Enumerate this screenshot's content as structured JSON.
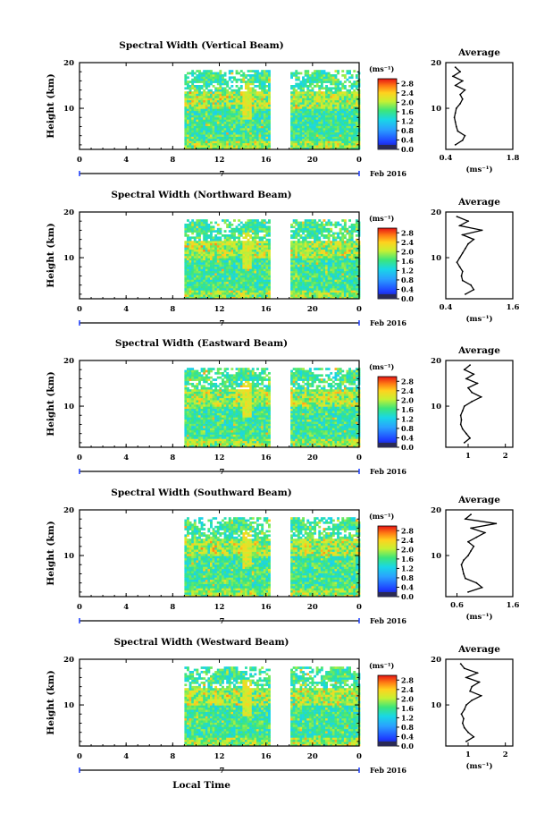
{
  "chart_data": [
    {
      "type": "heatmap",
      "title": "Spectral Width (Vertical Beam)",
      "ylabel": "Height (km)",
      "xlabel": "",
      "date_label": "7",
      "month_label": "Feb 2016",
      "x_ticks": [
        "0",
        "4",
        "8",
        "12",
        "16",
        "20",
        "0"
      ],
      "y_ticks": [
        "20",
        "10"
      ],
      "xlim": [
        0,
        24
      ],
      "ylim": [
        1,
        20
      ],
      "colorbar": {
        "label": "(ms⁻¹)",
        "ticks": [
          "2.8",
          "2.4",
          "2.0",
          "1.6",
          "1.2",
          "0.8",
          "0.4",
          "0.0"
        ],
        "range": [
          0,
          3.0
        ]
      },
      "data_periods": [
        [
          9,
          16.2
        ],
        [
          18.1,
          24
        ]
      ],
      "average": {
        "title": "Average",
        "xlabel": "(ms⁻¹)",
        "x_ticks": [
          "0.4",
          "1.8"
        ],
        "xlim": [
          0.4,
          1.8
        ],
        "y_ticks": [
          "20",
          "10"
        ],
        "heights": [
          2,
          3,
          4,
          5,
          6,
          7,
          8,
          9,
          10,
          11,
          12,
          13,
          14,
          15,
          16,
          17,
          18,
          19
        ],
        "values": [
          0.6,
          0.75,
          0.8,
          0.65,
          0.62,
          0.6,
          0.58,
          0.6,
          0.62,
          0.7,
          0.75,
          0.7,
          0.8,
          0.6,
          0.75,
          0.55,
          0.7,
          0.6
        ]
      }
    },
    {
      "type": "heatmap",
      "title": "Spectral Width (Northward Beam)",
      "ylabel": "Height (km)",
      "xlabel": "",
      "date_label": "7",
      "month_label": "Feb 2016",
      "x_ticks": [
        "0",
        "4",
        "8",
        "12",
        "16",
        "20",
        "0"
      ],
      "y_ticks": [
        "20",
        "10"
      ],
      "xlim": [
        0,
        24
      ],
      "ylim": [
        1,
        20
      ],
      "colorbar": {
        "label": "(ms⁻¹)",
        "ticks": [
          "2.8",
          "2.4",
          "2.0",
          "1.6",
          "1.2",
          "0.8",
          "0.4",
          "0.0"
        ],
        "range": [
          0,
          3.0
        ]
      },
      "data_periods": [
        [
          9,
          16.2
        ],
        [
          18.1,
          24
        ]
      ],
      "average": {
        "title": "Average",
        "xlabel": "(ms⁻¹)",
        "x_ticks": [
          "0.4",
          "1.6"
        ],
        "xlim": [
          0.4,
          1.6
        ],
        "y_ticks": [
          "20",
          "10"
        ],
        "heights": [
          2,
          3,
          4,
          5,
          6,
          7,
          8,
          9,
          10,
          11,
          12,
          13,
          14,
          15,
          16,
          17,
          18,
          19
        ],
        "values": [
          0.75,
          0.9,
          0.85,
          0.7,
          0.68,
          0.7,
          0.65,
          0.6,
          0.65,
          0.7,
          0.75,
          0.8,
          0.9,
          0.7,
          1.05,
          0.65,
          0.8,
          0.6
        ]
      }
    },
    {
      "type": "heatmap",
      "title": "Spectral Width (Eastward Beam)",
      "ylabel": "Height (km)",
      "xlabel": "",
      "date_label": "7",
      "month_label": "Feb 2016",
      "x_ticks": [
        "0",
        "4",
        "8",
        "12",
        "16",
        "20",
        "0"
      ],
      "y_ticks": [
        "20",
        "10"
      ],
      "xlim": [
        0,
        24
      ],
      "ylim": [
        1,
        20
      ],
      "colorbar": {
        "label": "(ms⁻¹)",
        "ticks": [
          "2.8",
          "2.4",
          "2.0",
          "1.6",
          "1.2",
          "0.8",
          "0.4",
          "0.0"
        ],
        "range": [
          0,
          3.0
        ]
      },
      "data_periods": [
        [
          9,
          16.2
        ],
        [
          18.1,
          24
        ]
      ],
      "average": {
        "title": "Average",
        "xlabel": "",
        "x_ticks": [
          "1",
          "2"
        ],
        "xlim": [
          0.4,
          2.2
        ],
        "y_ticks": [
          "20",
          "10"
        ],
        "heights": [
          2,
          3,
          4,
          5,
          6,
          7,
          8,
          9,
          10,
          11,
          12,
          13,
          14,
          15,
          16,
          17,
          18,
          19
        ],
        "values": [
          0.9,
          1.05,
          0.95,
          0.85,
          0.8,
          0.82,
          0.8,
          0.85,
          0.9,
          1.1,
          1.35,
          1.1,
          1.0,
          1.25,
          0.95,
          1.15,
          0.9,
          1.05
        ]
      }
    },
    {
      "type": "heatmap",
      "title": "Spectral Width (Southward Beam)",
      "ylabel": "Height (km)",
      "xlabel": "",
      "date_label": "7",
      "month_label": "Feb 2016",
      "x_ticks": [
        "0",
        "4",
        "8",
        "12",
        "16",
        "20",
        "0"
      ],
      "y_ticks": [
        "20",
        "10"
      ],
      "xlim": [
        0,
        24
      ],
      "ylim": [
        1,
        20
      ],
      "colorbar": {
        "label": "(ms⁻¹)",
        "ticks": [
          "2.8",
          "2.4",
          "2.0",
          "1.6",
          "1.2",
          "0.8",
          "0.4",
          "0.0"
        ],
        "range": [
          0,
          3.0
        ]
      },
      "data_periods": [
        [
          9,
          16.2
        ],
        [
          18.1,
          24
        ]
      ],
      "average": {
        "title": "Average",
        "xlabel": "(ms⁻¹)",
        "x_ticks": [
          "0.6",
          "1.6"
        ],
        "xlim": [
          0.4,
          1.6
        ],
        "y_ticks": [
          "20",
          "10"
        ],
        "heights": [
          2,
          3,
          4,
          5,
          6,
          7,
          8,
          9,
          10,
          11,
          12,
          13,
          14,
          15,
          16,
          17,
          18,
          19
        ],
        "values": [
          0.8,
          1.05,
          0.95,
          0.75,
          0.72,
          0.7,
          0.68,
          0.72,
          0.8,
          0.85,
          0.9,
          0.8,
          0.95,
          1.1,
          0.85,
          1.3,
          0.75,
          0.85
        ]
      }
    },
    {
      "type": "heatmap",
      "title": "Spectral Width (Westward Beam)",
      "ylabel": "Height (km)",
      "xlabel": "Local Time",
      "date_label": "7",
      "month_label": "Feb 2016",
      "x_ticks": [
        "0",
        "4",
        "8",
        "12",
        "16",
        "20",
        "0"
      ],
      "y_ticks": [
        "20",
        "10"
      ],
      "xlim": [
        0,
        24
      ],
      "ylim": [
        1,
        20
      ],
      "colorbar": {
        "label": "(ms⁻¹)",
        "ticks": [
          "2.8",
          "2.4",
          "2.0",
          "1.6",
          "1.2",
          "0.8",
          "0.4",
          "0.0"
        ],
        "range": [
          0,
          3.0
        ]
      },
      "data_periods": [
        [
          9,
          16.2
        ],
        [
          18.1,
          24
        ]
      ],
      "average": {
        "title": "Average",
        "xlabel": "(ms⁻¹)",
        "x_ticks": [
          "1",
          "2"
        ],
        "xlim": [
          0.4,
          2.2
        ],
        "y_ticks": [
          "20",
          "10"
        ],
        "heights": [
          2,
          3,
          4,
          5,
          6,
          7,
          8,
          9,
          10,
          11,
          12,
          13,
          14,
          15,
          16,
          17,
          18,
          19
        ],
        "values": [
          0.95,
          1.15,
          1.0,
          0.9,
          0.85,
          0.88,
          0.82,
          0.9,
          0.95,
          1.1,
          1.35,
          1.05,
          1.1,
          1.3,
          0.95,
          1.25,
          0.9,
          0.8
        ]
      }
    }
  ]
}
